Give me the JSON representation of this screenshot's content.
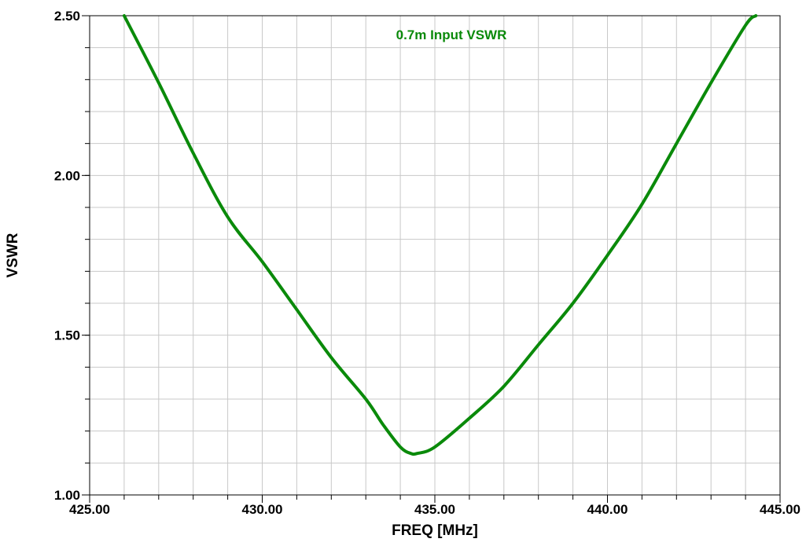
{
  "chart_data": {
    "type": "line",
    "title": "",
    "xlabel": "FREQ [MHz]",
    "ylabel": "VSWR",
    "xlim": [
      425.0,
      445.0
    ],
    "ylim": [
      1.0,
      2.5
    ],
    "x_ticks": [
      425.0,
      430.0,
      435.0,
      440.0,
      445.0
    ],
    "x_tick_labels": [
      "425.00",
      "430.00",
      "435.00",
      "440.00",
      "445.00"
    ],
    "y_ticks": [
      1.0,
      1.5,
      2.0,
      2.5
    ],
    "y_tick_labels": [
      "1.00",
      "1.50",
      "2.00",
      "2.50"
    ],
    "x_minor_step": 1.0,
    "y_minor_step": 0.1,
    "grid": true,
    "series": [
      {
        "name": "0.7m Input VSWR",
        "color": "#0a8a0a",
        "points": [
          [
            426.0,
            2.5
          ],
          [
            427.0,
            2.29
          ],
          [
            428.0,
            2.07
          ],
          [
            429.0,
            1.87
          ],
          [
            430.0,
            1.73
          ],
          [
            431.0,
            1.58
          ],
          [
            432.0,
            1.43
          ],
          [
            433.0,
            1.3
          ],
          [
            433.5,
            1.22
          ],
          [
            434.0,
            1.15
          ],
          [
            434.3,
            1.13
          ],
          [
            434.5,
            1.13
          ],
          [
            435.0,
            1.15
          ],
          [
            436.0,
            1.24
          ],
          [
            437.0,
            1.34
          ],
          [
            438.0,
            1.47
          ],
          [
            439.0,
            1.6
          ],
          [
            440.0,
            1.75
          ],
          [
            441.0,
            1.91
          ],
          [
            442.0,
            2.1
          ],
          [
            443.0,
            2.29
          ],
          [
            444.0,
            2.47
          ],
          [
            444.3,
            2.5
          ]
        ]
      }
    ]
  }
}
